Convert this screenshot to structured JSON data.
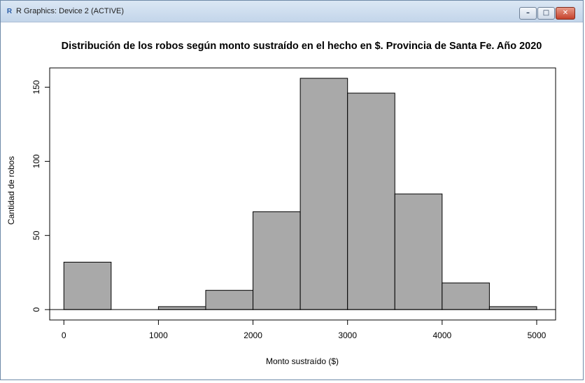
{
  "window": {
    "title": "R Graphics: Device 2 (ACTIVE)",
    "icon": "r-logo-icon",
    "controls": {
      "minimize_icon": "minimize-icon",
      "maximize_icon": "maximize-icon",
      "close_icon": "close-icon"
    }
  },
  "colors": {
    "bar_fill": "#a9a9a9",
    "bar_stroke": "#000000",
    "background": "#ffffff",
    "titlebar": "#c8d9ee"
  },
  "chart_data": {
    "type": "bar",
    "histogram": true,
    "title": "Distribución de los robos según monto sustraído en el hecho en $. Provincia de Santa Fe. Año 2020",
    "xlabel": "Monto sustraído ($)",
    "ylabel": "Cantidad de robos",
    "xlim": [
      -150,
      5200
    ],
    "ylim": [
      -7,
      163
    ],
    "x_ticks": [
      0,
      1000,
      2000,
      3000,
      4000,
      5000
    ],
    "y_ticks": [
      0,
      50,
      100,
      150
    ],
    "grid": false,
    "bins": [
      {
        "from": 0,
        "to": 500,
        "count": 32
      },
      {
        "from": 500,
        "to": 1000,
        "count": 0
      },
      {
        "from": 1000,
        "to": 1500,
        "count": 2
      },
      {
        "from": 1500,
        "to": 2000,
        "count": 13
      },
      {
        "from": 2000,
        "to": 2500,
        "count": 66
      },
      {
        "from": 2500,
        "to": 3000,
        "count": 156
      },
      {
        "from": 3000,
        "to": 3500,
        "count": 146
      },
      {
        "from": 3500,
        "to": 4000,
        "count": 78
      },
      {
        "from": 4000,
        "to": 4500,
        "count": 18
      },
      {
        "from": 4500,
        "to": 5000,
        "count": 2
      }
    ]
  }
}
